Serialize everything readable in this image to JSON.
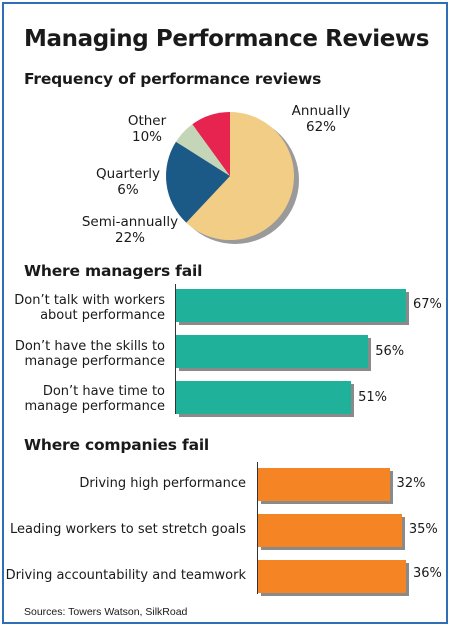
{
  "title": "Managing Performance Reviews",
  "source": "Sources: Towers Watson, SilkRoad",
  "chart_data": [
    {
      "type": "pie",
      "title": "Frequency of performance reviews",
      "slices": [
        {
          "label": "Annually",
          "value": 62,
          "value_label": "62%",
          "color": "#f2cd85"
        },
        {
          "label": "Semi-annually",
          "value": 22,
          "value_label": "22%",
          "color": "#1b5a87"
        },
        {
          "label": "Quarterly",
          "value": 6,
          "value_label": "6%",
          "color": "#c5d6b8"
        },
        {
          "label": "Other",
          "value": 10,
          "value_label": "10%",
          "color": "#e7234f"
        }
      ]
    },
    {
      "type": "bar",
      "orientation": "horizontal",
      "title": "Where managers fail",
      "categories": [
        "Don’t talk with workers about performance",
        "Don’t have the skills to manage performance",
        "Don’t have time to manage performance"
      ],
      "category_lines": [
        [
          "Don’t talk with workers",
          "about performance"
        ],
        [
          "Don’t have the skills to",
          "manage performance"
        ],
        [
          "Don’t have time to",
          "manage performance"
        ]
      ],
      "values": [
        67,
        56,
        51
      ],
      "value_labels": [
        "67%",
        "56%",
        "51%"
      ],
      "color": "#1fb19a"
    },
    {
      "type": "bar",
      "orientation": "horizontal",
      "title": "Where companies fail",
      "categories": [
        "Driving high performance",
        "Leading workers to set stretch goals",
        "Driving accountability and teamwork"
      ],
      "values": [
        32,
        35,
        36
      ],
      "value_labels": [
        "32%",
        "35%",
        "36%"
      ],
      "color": "#f58424"
    }
  ]
}
